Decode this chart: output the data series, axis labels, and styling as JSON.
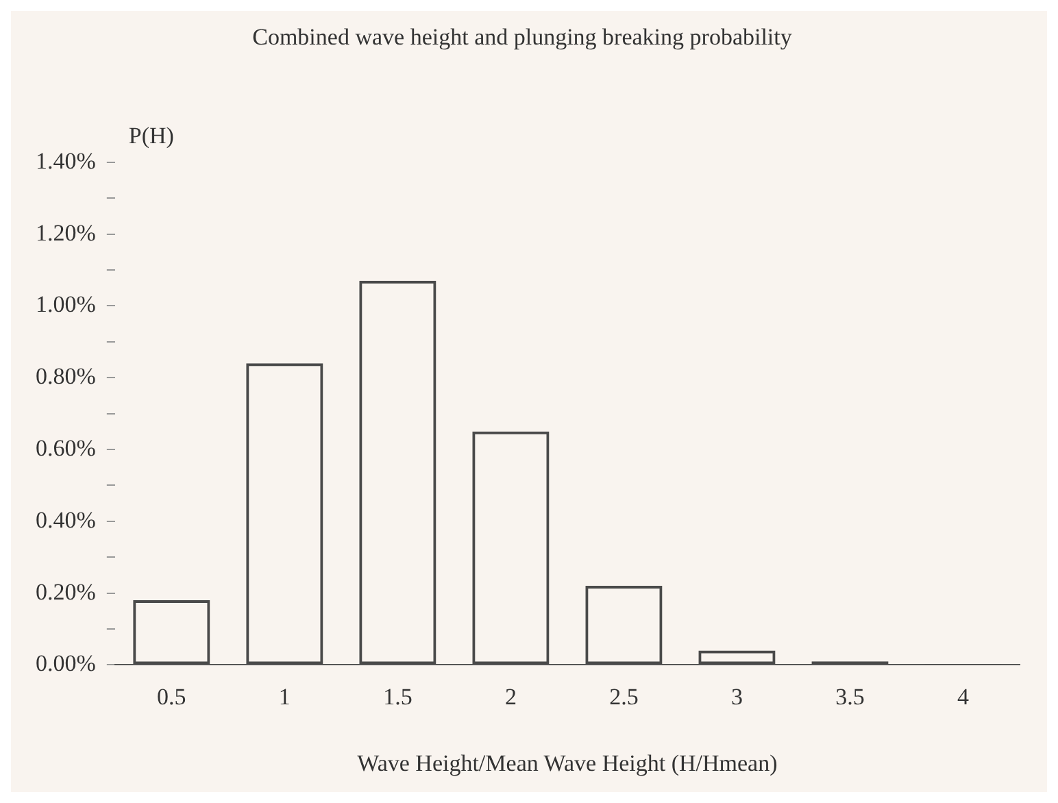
{
  "chart_data": {
    "type": "bar",
    "title": "Combined wave height and plunging breaking probability",
    "xlabel": "Wave Height/Mean Wave Height (H/Hmean)",
    "ylabel": "P(H)",
    "categories": [
      "0.5",
      "1",
      "1.5",
      "2",
      "2.5",
      "3",
      "3.5",
      "4"
    ],
    "values": [
      0.18,
      0.84,
      1.07,
      0.65,
      0.22,
      0.04,
      0.01,
      0.001
    ],
    "color": "#4a4a4a",
    "ylim": [
      0,
      1.4
    ],
    "yticks": [
      {
        "value": 0,
        "label": "0.00%"
      },
      {
        "value": 0.1,
        "label": null
      },
      {
        "value": 0.2,
        "label": "0.20%"
      },
      {
        "value": 0.3,
        "label": null
      },
      {
        "value": 0.4,
        "label": "0.40%"
      },
      {
        "value": 0.5,
        "label": null
      },
      {
        "value": 0.6,
        "label": "0.60%"
      },
      {
        "value": 0.7,
        "label": null
      },
      {
        "value": 0.8,
        "label": "0.80%"
      },
      {
        "value": 0.9,
        "label": null
      },
      {
        "value": 1.0,
        "label": "1.00%"
      },
      {
        "value": 1.1,
        "label": null
      },
      {
        "value": 1.2,
        "label": "1.20%"
      },
      {
        "value": 1.3,
        "label": null
      },
      {
        "value": 1.4,
        "label": "1.40%"
      }
    ],
    "grid": false,
    "legend": false
  }
}
